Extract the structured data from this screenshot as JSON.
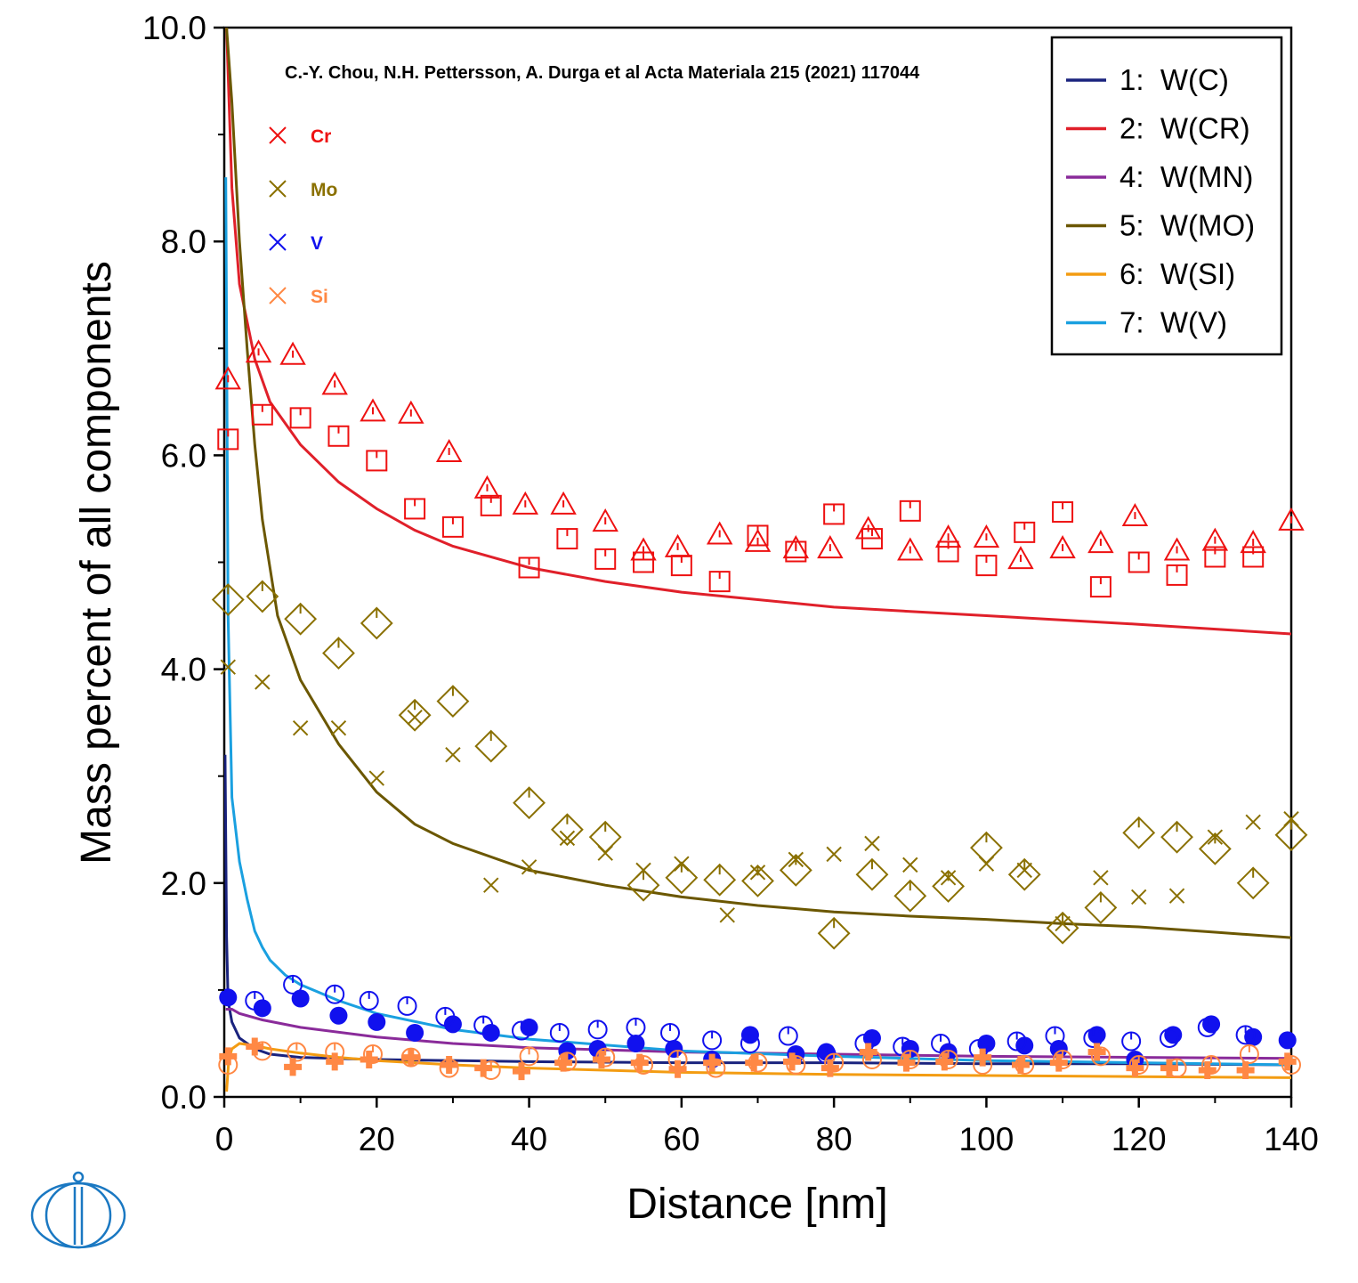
{
  "chart_data": {
    "type": "line",
    "xlabel": "Distance [nm]",
    "ylabel": "Mass percent of all components",
    "xlim": [
      0,
      140
    ],
    "ylim": [
      0,
      10
    ],
    "x_ticks": [
      "0",
      "20",
      "40",
      "60",
      "80",
      "100",
      "120",
      "140"
    ],
    "y_ticks": [
      "0.0",
      "2.0",
      "4.0",
      "6.0",
      "8.0",
      "10.0"
    ],
    "grid": false,
    "legend_position": "top-right",
    "annotation": "C.-Y. Chou, N.H. Pettersson, A. Durga et al Acta Materiala 215 (2021) 117044",
    "series": [
      {
        "name": "1:  W(C)",
        "color": "#1a237e",
        "x": [
          0.1,
          0.3,
          0.5,
          1,
          2,
          4,
          6,
          10,
          20,
          40,
          60,
          80,
          100,
          120,
          140
        ],
        "y": [
          3.2,
          1.5,
          0.9,
          0.7,
          0.55,
          0.45,
          0.4,
          0.37,
          0.35,
          0.33,
          0.32,
          0.32,
          0.31,
          0.31,
          0.3
        ]
      },
      {
        "name": "2:  W(CR)",
        "color": "#e0202a",
        "x": [
          0.3,
          1,
          2,
          4,
          6,
          10,
          15,
          20,
          25,
          30,
          40,
          50,
          60,
          80,
          100,
          120,
          140
        ],
        "y": [
          10.0,
          8.5,
          7.6,
          6.9,
          6.5,
          6.1,
          5.75,
          5.5,
          5.3,
          5.15,
          4.95,
          4.82,
          4.72,
          4.58,
          4.5,
          4.42,
          4.33
        ]
      },
      {
        "name": "4:  W(MN)",
        "color": "#8a2b9a",
        "x": [
          0.2,
          1,
          2,
          5,
          10,
          20,
          30,
          40,
          60,
          80,
          100,
          120,
          140
        ],
        "y": [
          0.82,
          0.82,
          0.78,
          0.72,
          0.65,
          0.56,
          0.5,
          0.46,
          0.42,
          0.4,
          0.38,
          0.37,
          0.36
        ]
      },
      {
        "name": "5:  W(MO)",
        "color": "#6b5700",
        "x": [
          0.3,
          1,
          2,
          3,
          4,
          5,
          7,
          10,
          15,
          20,
          25,
          30,
          40,
          50,
          60,
          70,
          80,
          90,
          100,
          110,
          120,
          130,
          140
        ],
        "y": [
          10.0,
          9.3,
          8.0,
          7.0,
          6.1,
          5.4,
          4.5,
          3.9,
          3.3,
          2.85,
          2.55,
          2.37,
          2.12,
          1.98,
          1.87,
          1.79,
          1.73,
          1.69,
          1.66,
          1.62,
          1.59,
          1.54,
          1.49
        ]
      },
      {
        "name": "6:  W(SI)",
        "color": "#f39c12",
        "x": [
          0.3,
          0.6,
          1,
          2,
          4,
          6,
          10,
          15,
          20,
          30,
          40,
          60,
          80,
          100,
          120,
          140
        ],
        "y": [
          0.05,
          0.35,
          0.45,
          0.5,
          0.48,
          0.45,
          0.41,
          0.37,
          0.34,
          0.3,
          0.27,
          0.23,
          0.21,
          0.2,
          0.19,
          0.18
        ]
      },
      {
        "name": "7:  W(V)",
        "color": "#1aa0e0",
        "x": [
          0.2,
          0.5,
          1,
          2,
          3,
          4,
          5,
          6,
          8,
          10,
          15,
          20,
          30,
          40,
          60,
          80,
          100,
          120,
          140
        ],
        "y": [
          8.6,
          4.5,
          2.8,
          2.2,
          1.85,
          1.55,
          1.4,
          1.28,
          1.14,
          1.05,
          0.9,
          0.78,
          0.63,
          0.54,
          0.43,
          0.38,
          0.34,
          0.32,
          0.3
        ]
      }
    ],
    "marker_legend": [
      {
        "label": "Cr",
        "color": "#ee1111"
      },
      {
        "label": "Mo",
        "color": "#8a7000"
      },
      {
        "label": "V",
        "color": "#1111ee"
      },
      {
        "label": "Si",
        "color": "#ff8844"
      }
    ],
    "scatter": [
      {
        "element": "Cr",
        "marker": "triangle",
        "color": "#ee1111",
        "x": [
          0.5,
          4.5,
          9,
          14.5,
          19.5,
          24.5,
          29.5,
          34.5,
          39.5,
          44.5,
          50,
          55,
          59.5,
          65,
          70,
          75,
          79.5,
          84.5,
          90,
          95,
          100,
          104.5,
          110,
          115,
          119.5,
          125,
          130,
          135,
          140
        ],
        "y": [
          6.7,
          6.95,
          6.93,
          6.65,
          6.4,
          6.38,
          6.02,
          5.68,
          5.53,
          5.53,
          5.37,
          5.1,
          5.13,
          5.25,
          5.18,
          5.12,
          5.12,
          5.3,
          5.1,
          5.22,
          5.22,
          5.02,
          5.12,
          5.17,
          5.42,
          5.1,
          5.19,
          5.17,
          5.38
        ]
      },
      {
        "element": "Cr",
        "marker": "square",
        "color": "#ee1111",
        "x": [
          0.5,
          5,
          10,
          15,
          20,
          25,
          30,
          35,
          40,
          45,
          50,
          55,
          60,
          65,
          70,
          75,
          80,
          85,
          90,
          95,
          100,
          105,
          110,
          115,
          120,
          125,
          130,
          135
        ],
        "y": [
          6.15,
          6.38,
          6.35,
          6.18,
          5.95,
          5.5,
          5.33,
          5.53,
          4.95,
          5.22,
          5.03,
          5.0,
          4.97,
          4.82,
          5.25,
          5.1,
          5.45,
          5.22,
          5.48,
          5.1,
          4.97,
          5.28,
          5.47,
          4.77,
          5.0,
          4.88,
          5.05,
          5.05
        ]
      },
      {
        "element": "Mo",
        "marker": "diamond",
        "color": "#8a7000",
        "x": [
          0.5,
          5,
          10,
          15,
          20,
          25,
          30,
          35,
          40,
          45,
          50,
          55,
          60,
          65,
          70,
          75,
          80,
          85,
          90,
          95,
          100,
          105,
          110,
          115,
          120,
          125,
          130,
          135,
          140
        ],
        "y": [
          4.65,
          4.68,
          4.47,
          4.15,
          4.43,
          3.57,
          3.7,
          3.28,
          2.75,
          2.5,
          2.43,
          1.98,
          2.05,
          2.03,
          2.02,
          2.12,
          1.53,
          2.08,
          1.88,
          1.97,
          2.33,
          2.08,
          1.58,
          1.77,
          2.47,
          2.43,
          2.32,
          2.0,
          2.45
        ]
      },
      {
        "element": "Mo",
        "marker": "cross",
        "color": "#8a7000",
        "x": [
          0.5,
          5,
          10,
          15,
          20,
          25,
          30,
          35,
          40,
          45,
          50,
          55,
          60,
          66,
          70,
          75,
          80,
          85,
          90,
          95,
          100,
          105,
          110,
          115,
          120,
          125,
          130,
          135,
          140
        ],
        "y": [
          4.02,
          3.88,
          3.45,
          3.45,
          2.98,
          3.55,
          3.2,
          1.98,
          2.15,
          2.42,
          2.28,
          2.12,
          2.18,
          1.7,
          2.1,
          2.22,
          2.27,
          2.37,
          2.17,
          2.05,
          2.18,
          2.12,
          1.62,
          2.05,
          1.87,
          1.88,
          2.43,
          2.57,
          2.6
        ]
      },
      {
        "element": "V",
        "marker": "filled-circle",
        "color": "#1111ee",
        "x": [
          0.5,
          5,
          10,
          15,
          20,
          25,
          30,
          35,
          40,
          45,
          49,
          54,
          59,
          64,
          69,
          75,
          79,
          85,
          90,
          95,
          100,
          105,
          109.5,
          114.5,
          119.5,
          124.5,
          129.5,
          135,
          139.5
        ],
        "y": [
          0.93,
          0.83,
          0.92,
          0.76,
          0.7,
          0.6,
          0.68,
          0.6,
          0.65,
          0.43,
          0.45,
          0.5,
          0.45,
          0.35,
          0.58,
          0.4,
          0.42,
          0.55,
          0.45,
          0.42,
          0.5,
          0.48,
          0.45,
          0.58,
          0.35,
          0.58,
          0.68,
          0.56,
          0.53
        ]
      },
      {
        "element": "V",
        "marker": "open-circle",
        "color": "#1111ee",
        "x": [
          4,
          9,
          14.5,
          19,
          24,
          29,
          34,
          39,
          44,
          49,
          54,
          58.5,
          64,
          69,
          74,
          79,
          84,
          89,
          94,
          99,
          104,
          109,
          114,
          119,
          124,
          129,
          134
        ],
        "y": [
          0.9,
          1.05,
          0.96,
          0.9,
          0.85,
          0.75,
          0.67,
          0.62,
          0.6,
          0.63,
          0.65,
          0.6,
          0.53,
          0.5,
          0.57,
          0.4,
          0.5,
          0.47,
          0.5,
          0.45,
          0.52,
          0.57,
          0.55,
          0.52,
          0.55,
          0.65,
          0.58
        ]
      },
      {
        "element": "Si",
        "marker": "plus",
        "color": "#ff8844",
        "x": [
          0.5,
          4,
          9,
          14.5,
          19,
          24.5,
          29.5,
          34,
          39,
          44.5,
          49.5,
          54.5,
          59.5,
          64,
          69.5,
          74.5,
          79.5,
          84.5,
          89.5,
          94.5,
          99.5,
          104.5,
          109.5,
          114.5,
          119.5,
          124,
          129,
          134,
          139.5
        ],
        "y": [
          0.38,
          0.47,
          0.28,
          0.33,
          0.35,
          0.37,
          0.3,
          0.27,
          0.24,
          0.32,
          0.35,
          0.32,
          0.26,
          0.32,
          0.32,
          0.33,
          0.27,
          0.42,
          0.32,
          0.33,
          0.37,
          0.3,
          0.32,
          0.42,
          0.27,
          0.27,
          0.25,
          0.25,
          0.33
        ]
      },
      {
        "element": "Si",
        "marker": "open-circle",
        "color": "#ff8844",
        "x": [
          0.5,
          5,
          9.5,
          14.5,
          19.5,
          24.5,
          29.5,
          35,
          40,
          45,
          50,
          55,
          59.5,
          64.5,
          70,
          75,
          80,
          85,
          90,
          95,
          99.5,
          105,
          110,
          115,
          120,
          125,
          129.5,
          134.5,
          140
        ],
        "y": [
          0.3,
          0.43,
          0.42,
          0.42,
          0.4,
          0.37,
          0.27,
          0.25,
          0.38,
          0.33,
          0.37,
          0.3,
          0.35,
          0.27,
          0.32,
          0.3,
          0.32,
          0.35,
          0.35,
          0.35,
          0.3,
          0.3,
          0.35,
          0.38,
          0.3,
          0.27,
          0.3,
          0.4,
          0.3
        ]
      }
    ]
  }
}
